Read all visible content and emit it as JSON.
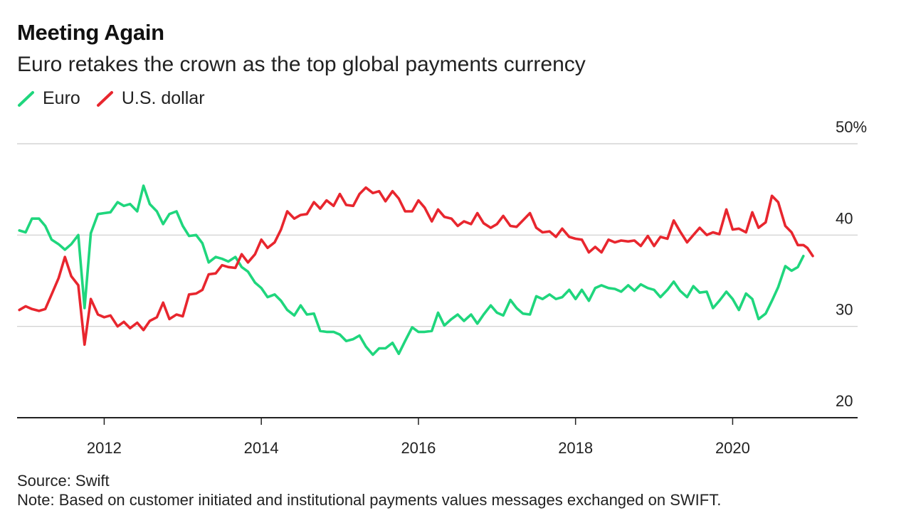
{
  "title": "Meeting Again",
  "subtitle": "Euro retakes the crown as the top global payments currency",
  "source": "Source: Swift",
  "note": "Note: Based on customer initiated and institutional payments values messages exchanged on SWIFT.",
  "colors": {
    "euro": "#1fd67d",
    "dollar": "#e8262e",
    "grid": "#cccccc",
    "axis": "#222222"
  },
  "chart_data": {
    "type": "line",
    "title": "Meeting Again",
    "subtitle": "Euro retakes the crown as the top global payments currency",
    "xlabel": "",
    "ylabel": "",
    "xlim": [
      2010.9,
      2020.9
    ],
    "ylim": [
      20,
      50
    ],
    "x_ticks": [
      2012,
      2014,
      2016,
      2018,
      2020
    ],
    "y_ticks": [
      20,
      30,
      40,
      50
    ],
    "y_tick_labels": [
      "20",
      "30",
      "40",
      "50%"
    ],
    "grid": true,
    "legend": "top-left",
    "series": [
      {
        "name": "Euro",
        "color": "#1fd67d",
        "points": [
          [
            2010.92,
            40.5
          ],
          [
            2011.0,
            40.3
          ],
          [
            2011.08,
            41.8
          ],
          [
            2011.17,
            41.8
          ],
          [
            2011.25,
            41.0
          ],
          [
            2011.33,
            39.5
          ],
          [
            2011.42,
            39.0
          ],
          [
            2011.5,
            38.4
          ],
          [
            2011.58,
            39.0
          ],
          [
            2011.67,
            40.0
          ],
          [
            2011.75,
            32.0
          ],
          [
            2011.83,
            40.2
          ],
          [
            2011.92,
            42.3
          ],
          [
            2012.0,
            42.4
          ],
          [
            2012.08,
            42.5
          ],
          [
            2012.17,
            43.6
          ],
          [
            2012.25,
            43.2
          ],
          [
            2012.33,
            43.4
          ],
          [
            2012.42,
            42.6
          ],
          [
            2012.5,
            45.4
          ],
          [
            2012.58,
            43.4
          ],
          [
            2012.67,
            42.6
          ],
          [
            2012.75,
            41.2
          ],
          [
            2012.83,
            42.3
          ],
          [
            2012.92,
            42.6
          ],
          [
            2013.0,
            41.0
          ],
          [
            2013.08,
            39.9
          ],
          [
            2013.17,
            40.0
          ],
          [
            2013.25,
            39.1
          ],
          [
            2013.33,
            37.0
          ],
          [
            2013.42,
            37.6
          ],
          [
            2013.5,
            37.4
          ],
          [
            2013.58,
            37.1
          ],
          [
            2013.67,
            37.6
          ],
          [
            2013.75,
            36.5
          ],
          [
            2013.83,
            36.0
          ],
          [
            2013.92,
            34.8
          ],
          [
            2014.0,
            34.2
          ],
          [
            2014.08,
            33.2
          ],
          [
            2014.17,
            33.5
          ],
          [
            2014.25,
            32.8
          ],
          [
            2014.33,
            31.8
          ],
          [
            2014.42,
            31.2
          ],
          [
            2014.5,
            32.3
          ],
          [
            2014.58,
            31.3
          ],
          [
            2014.67,
            31.4
          ],
          [
            2014.75,
            29.5
          ],
          [
            2014.83,
            29.4
          ],
          [
            2014.92,
            29.4
          ],
          [
            2015.0,
            29.1
          ],
          [
            2015.08,
            28.4
          ],
          [
            2015.17,
            28.6
          ],
          [
            2015.25,
            29.0
          ],
          [
            2015.33,
            27.8
          ],
          [
            2015.42,
            26.9
          ],
          [
            2015.5,
            27.6
          ],
          [
            2015.58,
            27.6
          ],
          [
            2015.67,
            28.2
          ],
          [
            2015.75,
            27.0
          ],
          [
            2015.83,
            28.4
          ],
          [
            2015.92,
            29.9
          ],
          [
            2016.0,
            29.4
          ],
          [
            2016.08,
            29.4
          ],
          [
            2016.17,
            29.5
          ],
          [
            2016.25,
            31.5
          ],
          [
            2016.33,
            30.1
          ],
          [
            2016.42,
            30.8
          ],
          [
            2016.5,
            31.3
          ],
          [
            2016.58,
            30.6
          ],
          [
            2016.67,
            31.3
          ],
          [
            2016.75,
            30.3
          ],
          [
            2016.83,
            31.3
          ],
          [
            2016.92,
            32.3
          ],
          [
            2017.0,
            31.5
          ],
          [
            2017.08,
            31.2
          ],
          [
            2017.17,
            32.9
          ],
          [
            2017.25,
            32.0
          ],
          [
            2017.33,
            31.4
          ],
          [
            2017.42,
            31.3
          ],
          [
            2017.5,
            33.3
          ],
          [
            2017.58,
            33.0
          ],
          [
            2017.67,
            33.5
          ],
          [
            2017.75,
            33.0
          ],
          [
            2017.83,
            33.2
          ],
          [
            2017.92,
            34.0
          ],
          [
            2018.0,
            33.0
          ],
          [
            2018.08,
            34.0
          ],
          [
            2018.17,
            32.8
          ],
          [
            2018.25,
            34.2
          ],
          [
            2018.33,
            34.5
          ],
          [
            2018.42,
            34.2
          ],
          [
            2018.5,
            34.1
          ],
          [
            2018.58,
            33.8
          ],
          [
            2018.67,
            34.5
          ],
          [
            2018.75,
            33.9
          ],
          [
            2018.83,
            34.6
          ],
          [
            2018.92,
            34.2
          ],
          [
            2019.0,
            34.0
          ],
          [
            2019.08,
            33.2
          ],
          [
            2019.17,
            34.0
          ],
          [
            2019.25,
            34.9
          ],
          [
            2019.33,
            33.9
          ],
          [
            2019.42,
            33.2
          ],
          [
            2019.5,
            34.4
          ],
          [
            2019.58,
            33.7
          ],
          [
            2019.67,
            33.8
          ],
          [
            2019.75,
            32.0
          ],
          [
            2019.83,
            32.8
          ],
          [
            2019.92,
            33.8
          ],
          [
            2020.0,
            33.0
          ],
          [
            2020.08,
            31.8
          ],
          [
            2020.17,
            33.6
          ],
          [
            2020.25,
            33.0
          ],
          [
            2020.33,
            30.8
          ],
          [
            2020.42,
            31.4
          ],
          [
            2020.5,
            32.8
          ],
          [
            2020.58,
            34.3
          ],
          [
            2020.67,
            36.6
          ],
          [
            2020.75,
            36.1
          ],
          [
            2020.83,
            36.5
          ],
          [
            2020.9,
            37.7
          ]
        ]
      },
      {
        "name": "U.S. dollar",
        "color": "#e8262e",
        "points": [
          [
            2010.92,
            31.8
          ],
          [
            2011.0,
            32.2
          ],
          [
            2011.08,
            31.9
          ],
          [
            2011.17,
            31.7
          ],
          [
            2011.25,
            31.9
          ],
          [
            2011.33,
            33.5
          ],
          [
            2011.42,
            35.3
          ],
          [
            2011.5,
            37.6
          ],
          [
            2011.58,
            35.5
          ],
          [
            2011.67,
            34.5
          ],
          [
            2011.75,
            28.0
          ],
          [
            2011.83,
            33.0
          ],
          [
            2011.92,
            31.3
          ],
          [
            2012.0,
            31.0
          ],
          [
            2012.08,
            31.2
          ],
          [
            2012.17,
            30.0
          ],
          [
            2012.25,
            30.5
          ],
          [
            2012.33,
            29.8
          ],
          [
            2012.42,
            30.4
          ],
          [
            2012.5,
            29.6
          ],
          [
            2012.58,
            30.6
          ],
          [
            2012.67,
            31.0
          ],
          [
            2012.75,
            32.6
          ],
          [
            2012.83,
            30.8
          ],
          [
            2012.92,
            31.3
          ],
          [
            2013.0,
            31.1
          ],
          [
            2013.08,
            33.5
          ],
          [
            2013.17,
            33.6
          ],
          [
            2013.25,
            34.0
          ],
          [
            2013.33,
            35.7
          ],
          [
            2013.42,
            35.8
          ],
          [
            2013.5,
            36.7
          ],
          [
            2013.58,
            36.5
          ],
          [
            2013.67,
            36.4
          ],
          [
            2013.75,
            37.9
          ],
          [
            2013.83,
            37.0
          ],
          [
            2013.92,
            37.9
          ],
          [
            2014.0,
            39.5
          ],
          [
            2014.08,
            38.6
          ],
          [
            2014.17,
            39.2
          ],
          [
            2014.25,
            40.6
          ],
          [
            2014.33,
            42.6
          ],
          [
            2014.42,
            41.8
          ],
          [
            2014.5,
            42.2
          ],
          [
            2014.58,
            42.3
          ],
          [
            2014.67,
            43.6
          ],
          [
            2014.75,
            42.9
          ],
          [
            2014.83,
            43.8
          ],
          [
            2014.92,
            43.2
          ],
          [
            2015.0,
            44.5
          ],
          [
            2015.08,
            43.3
          ],
          [
            2015.17,
            43.2
          ],
          [
            2015.25,
            44.5
          ],
          [
            2015.33,
            45.2
          ],
          [
            2015.42,
            44.6
          ],
          [
            2015.5,
            44.8
          ],
          [
            2015.58,
            43.7
          ],
          [
            2015.67,
            44.8
          ],
          [
            2015.75,
            44.0
          ],
          [
            2015.83,
            42.6
          ],
          [
            2015.92,
            42.6
          ],
          [
            2016.0,
            43.8
          ],
          [
            2016.08,
            43.0
          ],
          [
            2016.17,
            41.5
          ],
          [
            2016.25,
            42.8
          ],
          [
            2016.33,
            42.0
          ],
          [
            2016.42,
            41.8
          ],
          [
            2016.5,
            41.0
          ],
          [
            2016.58,
            41.5
          ],
          [
            2016.67,
            41.2
          ],
          [
            2016.75,
            42.4
          ],
          [
            2016.83,
            41.3
          ],
          [
            2016.92,
            40.8
          ],
          [
            2017.0,
            41.2
          ],
          [
            2017.08,
            42.1
          ],
          [
            2017.17,
            41.0
          ],
          [
            2017.25,
            40.9
          ],
          [
            2017.33,
            41.6
          ],
          [
            2017.42,
            42.4
          ],
          [
            2017.5,
            40.8
          ],
          [
            2017.58,
            40.3
          ],
          [
            2017.67,
            40.4
          ],
          [
            2017.75,
            39.8
          ],
          [
            2017.83,
            40.7
          ],
          [
            2017.92,
            39.8
          ],
          [
            2018.0,
            39.6
          ],
          [
            2018.08,
            39.5
          ],
          [
            2018.17,
            38.1
          ],
          [
            2018.25,
            38.7
          ],
          [
            2018.33,
            38.1
          ],
          [
            2018.42,
            39.5
          ],
          [
            2018.5,
            39.2
          ],
          [
            2018.58,
            39.4
          ],
          [
            2018.67,
            39.3
          ],
          [
            2018.75,
            39.4
          ],
          [
            2018.83,
            38.8
          ],
          [
            2018.92,
            39.9
          ],
          [
            2019.0,
            38.8
          ],
          [
            2019.08,
            39.8
          ],
          [
            2019.17,
            39.6
          ],
          [
            2019.25,
            41.6
          ],
          [
            2019.33,
            40.4
          ],
          [
            2019.42,
            39.2
          ],
          [
            2019.5,
            40.0
          ],
          [
            2019.58,
            40.8
          ],
          [
            2019.67,
            40.0
          ],
          [
            2019.75,
            40.3
          ],
          [
            2019.83,
            40.1
          ],
          [
            2019.92,
            42.8
          ],
          [
            2020.0,
            40.6
          ],
          [
            2020.08,
            40.7
          ],
          [
            2020.17,
            40.3
          ],
          [
            2020.25,
            42.5
          ],
          [
            2020.33,
            40.8
          ],
          [
            2020.42,
            41.4
          ],
          [
            2020.5,
            44.3
          ],
          [
            2020.58,
            43.6
          ],
          [
            2020.67,
            41.0
          ],
          [
            2020.75,
            40.3
          ],
          [
            2020.83,
            38.9
          ],
          [
            2020.9,
            38.9
          ],
          [
            2020.95,
            38.6
          ],
          [
            2021.02,
            37.7
          ]
        ]
      }
    ]
  }
}
